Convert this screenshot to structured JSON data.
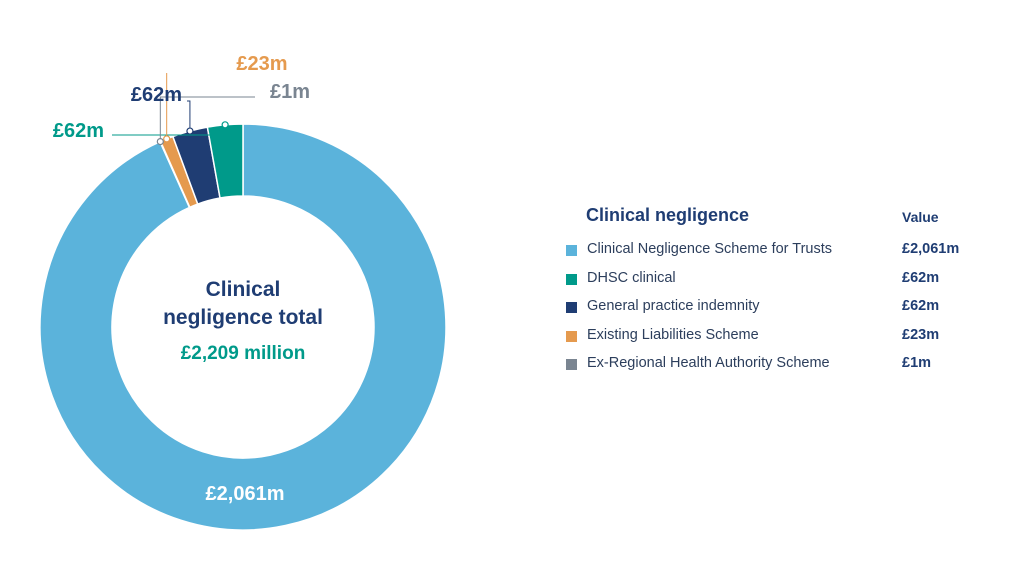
{
  "center": {
    "title_line1": "Clinical",
    "title_line2": "negligence total",
    "total": "£2,209 million"
  },
  "legend": {
    "title": "Clinical negligence",
    "value_header": "Value"
  },
  "chart_data": {
    "type": "pie",
    "donut": true,
    "title": "",
    "units": "£m",
    "categories": [
      "Clinical Negligence Scheme for Trusts",
      "DHSC clinical",
      "General practice indemnity",
      "Existing Liabilities Scheme",
      "Ex-Regional Health Authority Scheme"
    ],
    "values": [
      2061,
      62,
      62,
      23,
      1
    ],
    "labels": [
      "£2,061m",
      "£62m",
      "£62m",
      "£23m",
      "£1m"
    ],
    "colors": [
      "#5bb3db",
      "#009a8a",
      "#1f3d73",
      "#e59a4e",
      "#7a8591"
    ],
    "label_colors": [
      "#ffffff",
      "#009a8a",
      "#1f3d73",
      "#e59a4e",
      "#7a8591"
    ],
    "legend_position": "right",
    "total": 2209
  }
}
